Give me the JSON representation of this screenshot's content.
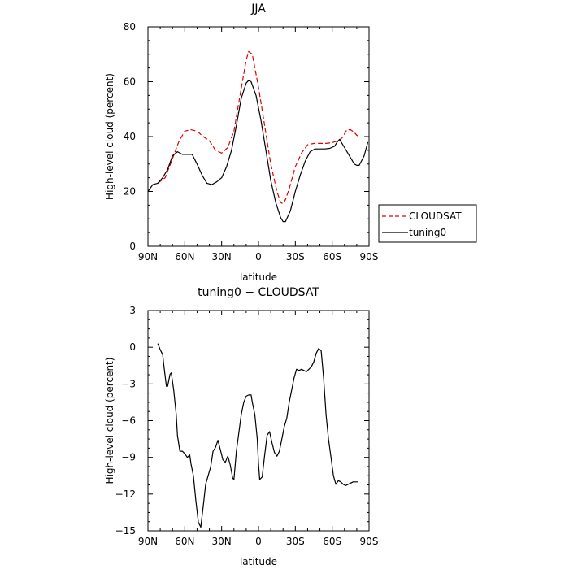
{
  "chart_data": [
    {
      "type": "line",
      "title": "JJA",
      "xlabel": "latitude",
      "ylabel": "High-level cloud (percent)",
      "xlim": [
        90,
        -90
      ],
      "ylim": [
        0,
        80
      ],
      "xticks": [
        {
          "value": 90,
          "label": "90N"
        },
        {
          "value": 60,
          "label": "60N"
        },
        {
          "value": 30,
          "label": "30N"
        },
        {
          "value": 0,
          "label": "0"
        },
        {
          "value": -30,
          "label": "30S"
        },
        {
          "value": -60,
          "label": "60S"
        },
        {
          "value": -90,
          "label": "90S"
        }
      ],
      "yticks": [
        0,
        20,
        40,
        60,
        80
      ],
      "legend_position": "right",
      "series": [
        {
          "name": "CLOUDSAT",
          "color": "#e00000",
          "dash": "dashed",
          "x": [
            82,
            76,
            70,
            65,
            60,
            55,
            50,
            45,
            40,
            35,
            30,
            25,
            20,
            15,
            10,
            8,
            5,
            0,
            -5,
            -10,
            -15,
            -18,
            -20,
            -22,
            -25,
            -30,
            -35,
            -40,
            -45,
            -50,
            -55,
            -60,
            -65,
            -68,
            -70,
            -72,
            -75,
            -78,
            -80,
            -82
          ],
          "y": [
            23,
            25,
            32,
            38,
            42,
            42.5,
            42,
            40,
            38.5,
            35,
            34,
            36,
            42,
            55,
            68,
            71,
            70,
            58,
            44,
            30,
            20,
            16,
            15.5,
            17,
            21,
            29,
            34,
            37,
            37.5,
            37.5,
            37.5,
            37.8,
            38.5,
            39.5,
            41,
            42.5,
            42.5,
            41.5,
            40.5,
            40
          ]
        },
        {
          "name": "tuning0",
          "color": "#000000",
          "dash": "solid",
          "x": [
            90,
            86,
            82,
            78,
            74,
            70,
            66,
            62,
            58,
            54,
            50,
            46,
            42,
            38,
            34,
            30,
            26,
            22,
            18,
            14,
            10,
            8,
            6,
            2,
            -2,
            -6,
            -10,
            -14,
            -18,
            -20,
            -22,
            -26,
            -30,
            -34,
            -38,
            -42,
            -46,
            -50,
            -54,
            -58,
            -62,
            -64,
            -66,
            -70,
            -74,
            -78,
            -80,
            -82,
            -86,
            -89
          ],
          "y": [
            20,
            22.5,
            23,
            25,
            28,
            33,
            34.5,
            33.5,
            33.5,
            33.5,
            30,
            26,
            23,
            22.5,
            23.5,
            25,
            29,
            35,
            44,
            54,
            59.5,
            60.5,
            60,
            55,
            46,
            35,
            24,
            16,
            10.5,
            9,
            9,
            13,
            20,
            26,
            31,
            34.5,
            35.5,
            35.5,
            35.5,
            35.7,
            36.5,
            38,
            39,
            36,
            33,
            30,
            29.5,
            29.5,
            33,
            38
          ]
        }
      ]
    },
    {
      "type": "line",
      "title": "tuning0 − CLOUDSAT",
      "xlabel": "latitude",
      "ylabel": "High-level cloud (percent)",
      "xlim": [
        90,
        -90
      ],
      "ylim": [
        -15,
        3
      ],
      "xticks": [
        {
          "value": 90,
          "label": "90N"
        },
        {
          "value": 60,
          "label": "60N"
        },
        {
          "value": 30,
          "label": "30N"
        },
        {
          "value": 0,
          "label": "0"
        },
        {
          "value": -30,
          "label": "30S"
        },
        {
          "value": -60,
          "label": "60S"
        },
        {
          "value": -90,
          "label": "90S"
        }
      ],
      "yticks": [
        3,
        0,
        -3,
        -6,
        -9,
        -12,
        -15
      ],
      "series": [
        {
          "name": "",
          "color": "#000000",
          "dash": "solid",
          "x": [
            82,
            80,
            78,
            77,
            75,
            74,
            72,
            71,
            69,
            67,
            66,
            64,
            62,
            60,
            58,
            56,
            55,
            53,
            51,
            49,
            47,
            45,
            43,
            41,
            39,
            37,
            35,
            33,
            31,
            29,
            27,
            25,
            23,
            21,
            20,
            18,
            16,
            14,
            12,
            10,
            8,
            6,
            5,
            3,
            1,
            0,
            -1,
            -3,
            -5,
            -7,
            -9,
            -11,
            -13,
            -15,
            -17,
            -19,
            -21,
            -23,
            -25,
            -27,
            -29,
            -31,
            -33,
            -35,
            -37,
            -39,
            -41,
            -43,
            -45,
            -47,
            -49,
            -51,
            -53,
            -55,
            -57,
            -59,
            -61,
            -63,
            -65,
            -67,
            -69,
            -71,
            -73,
            -75,
            -77,
            -79,
            -80,
            -81
          ],
          "y": [
            0.3,
            -0.2,
            -0.6,
            -1.5,
            -3.2,
            -3.2,
            -2.2,
            -2.1,
            -3.5,
            -5.5,
            -7.2,
            -8.5,
            -8.5,
            -8.7,
            -9,
            -8.8,
            -9.5,
            -10.5,
            -12.5,
            -14.3,
            -14.7,
            -13,
            -11.2,
            -10.5,
            -9.8,
            -8.5,
            -8.2,
            -7.6,
            -8.4,
            -9.2,
            -9.4,
            -8.9,
            -9.6,
            -10.7,
            -10.8,
            -8.5,
            -7,
            -5.5,
            -4.5,
            -4,
            -3.9,
            -3.9,
            -4.5,
            -5.5,
            -7.5,
            -9.5,
            -10.8,
            -10.6,
            -8.8,
            -7.2,
            -6.9,
            -7.8,
            -8.6,
            -8.9,
            -8.5,
            -7.5,
            -6.5,
            -5.8,
            -4.5,
            -3.5,
            -2.5,
            -1.8,
            -1.9,
            -1.8,
            -1.9,
            -2,
            -1.8,
            -1.6,
            -1.2,
            -0.5,
            -0.1,
            -0.3,
            -2.5,
            -5.5,
            -7.5,
            -9,
            -10.5,
            -11.2,
            -10.9,
            -11,
            -11.2,
            -11.3,
            -11.2,
            -11.1,
            -11,
            -11,
            -11,
            -11
          ]
        }
      ]
    }
  ]
}
